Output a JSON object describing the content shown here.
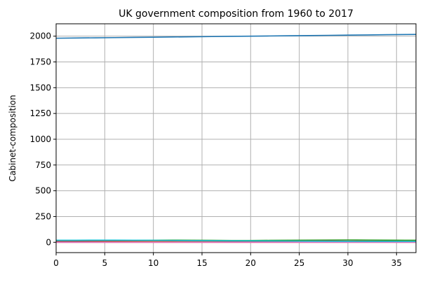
{
  "chart_data": {
    "type": "line",
    "title": "UK government composition from 1960 to 2017",
    "xlabel": "",
    "ylabel": "Cabinet-composition",
    "xlim": [
      0,
      37
    ],
    "ylim": [
      -100,
      2120
    ],
    "xticks": [
      0,
      5,
      10,
      15,
      20,
      25,
      30,
      35
    ],
    "yticks": [
      0,
      250,
      500,
      750,
      1000,
      1250,
      1500,
      1750,
      2000
    ],
    "grid": true,
    "legend": "none",
    "x": [
      0,
      2,
      4,
      6,
      8,
      10,
      12,
      14,
      16,
      18,
      20,
      22,
      24,
      26,
      28,
      30,
      32,
      34,
      36,
      37
    ],
    "series": [
      {
        "color": "#1f77b4",
        "values": [
          1980,
          1982,
          1984,
          1986,
          1988,
          1990,
          1992,
          1994,
          1996,
          1998,
          2000,
          2002,
          2004,
          2006,
          2008,
          2010,
          2012,
          2014,
          2016,
          2017
        ]
      },
      {
        "color": "#ff7f0e",
        "values": [
          2,
          2,
          3,
          4,
          5,
          6,
          6,
          5,
          5,
          4,
          4,
          4,
          5,
          6,
          6,
          6,
          5,
          4,
          4,
          4
        ]
      },
      {
        "color": "#2ca02c",
        "values": [
          18,
          19,
          19,
          20,
          20,
          20,
          21,
          20,
          19,
          18,
          18,
          19,
          20,
          21,
          22,
          23,
          22,
          21,
          20,
          20
        ]
      },
      {
        "color": "#d62728",
        "values": [
          0,
          0,
          0,
          0,
          0,
          0,
          0,
          0,
          0,
          0,
          0,
          0,
          0,
          0,
          0,
          0,
          0,
          0,
          0,
          0
        ]
      },
      {
        "color": "#9467bd",
        "values": [
          1,
          1,
          1,
          1,
          1,
          1,
          1,
          1,
          1,
          1,
          1,
          1,
          1,
          1,
          1,
          1,
          1,
          1,
          1,
          1
        ]
      },
      {
        "color": "#8c564b",
        "values": [
          10,
          11,
          12,
          13,
          14,
          15,
          14,
          13,
          12,
          11,
          10,
          10,
          11,
          12,
          13,
          12,
          11,
          10,
          9,
          9
        ]
      },
      {
        "color": "#e377c2",
        "values": [
          0,
          0,
          0,
          0,
          0,
          0,
          0,
          0,
          0,
          0,
          0,
          0,
          0,
          0,
          0,
          0,
          0,
          0,
          0,
          0
        ]
      },
      {
        "color": "#17becf",
        "values": [
          20,
          20,
          21,
          21,
          20,
          19,
          18,
          17,
          16,
          15,
          14,
          13,
          12,
          11,
          10,
          9,
          8,
          8,
          8,
          8
        ]
      }
    ]
  }
}
